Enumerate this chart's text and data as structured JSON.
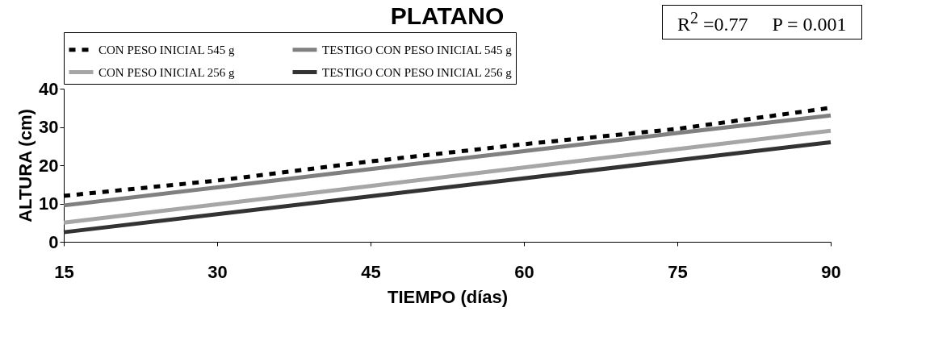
{
  "chart_data": {
    "type": "line",
    "title": "PLATANO",
    "xlabel": "TIEMPO (días)",
    "ylabel": "ALTURA (cm)",
    "annotations": [
      "R$^{2}$ =0.77     P = 0.001"
    ],
    "x": [
      15,
      30,
      45,
      60,
      75,
      90
    ],
    "series": [
      {
        "name": "CON PESO INICIAL 545 g",
        "color": "#000000",
        "line_style": "dotted",
        "values": [
          12,
          16,
          21,
          25.5,
          29.5,
          35
        ]
      },
      {
        "name": "TESTIGO CON PESO INICIAL 545 g",
        "color": "#808080",
        "line_style": "solid",
        "values": [
          9.5,
          14.2,
          19,
          23.7,
          28.4,
          33
        ]
      },
      {
        "name": "CON PESO INICIAL 256 g",
        "color": "#a6a6a6",
        "line_style": "solid",
        "values": [
          5,
          9.8,
          14.6,
          19.4,
          24.2,
          29
        ]
      },
      {
        "name": "TESTIGO CON PESO INICIAL 256 g",
        "color": "#333333",
        "line_style": "solid",
        "values": [
          2.5,
          7.2,
          11.9,
          16.6,
          21.3,
          26
        ]
      }
    ],
    "xlim": [
      15,
      90
    ],
    "xticks": [
      15,
      30,
      45,
      60,
      75,
      90
    ],
    "ylim": [
      0,
      40
    ],
    "yticks": [
      0,
      10,
      20,
      30,
      40
    ],
    "grid": false,
    "legend": "top",
    "marker": "none"
  }
}
